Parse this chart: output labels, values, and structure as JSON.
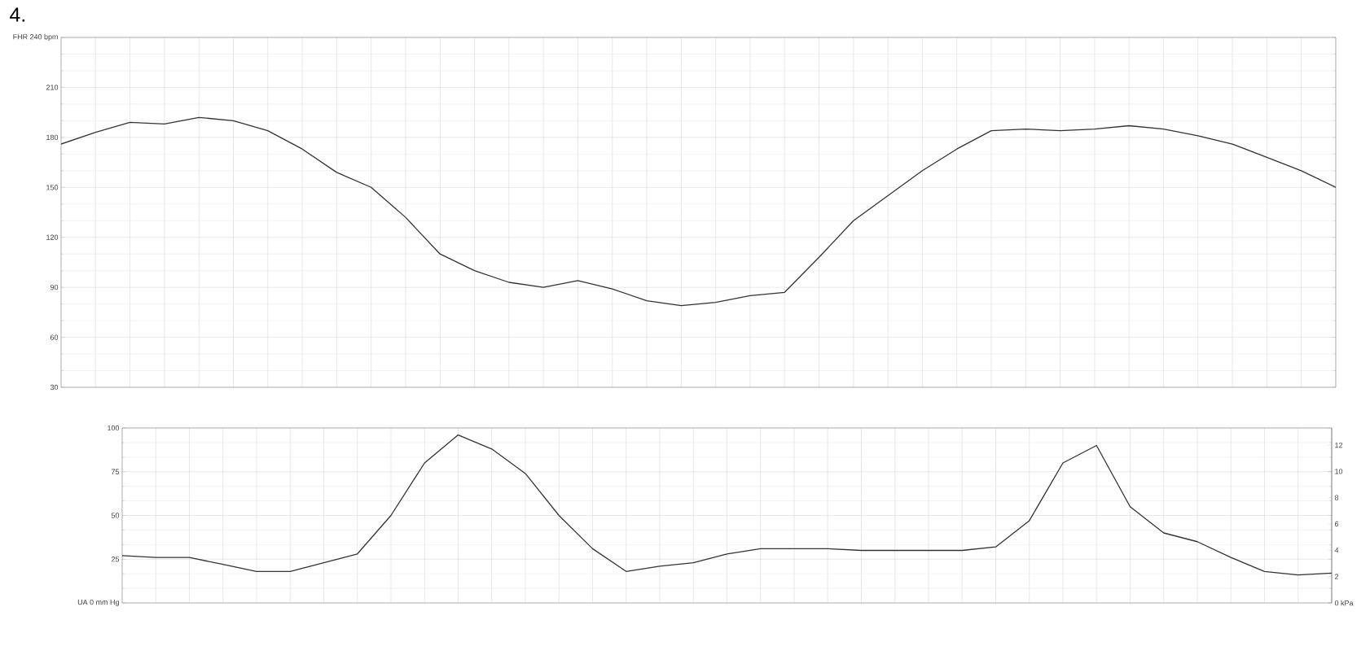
{
  "chart_data": [
    {
      "type": "line",
      "annotations": [
        "4."
      ],
      "color": "#333333",
      "grid": true,
      "categories": [
        null,
        null,
        null,
        null,
        null,
        null,
        null,
        null,
        null,
        null,
        null,
        null,
        null,
        null,
        null,
        null,
        null,
        null,
        null,
        null,
        null,
        null,
        null,
        null,
        null,
        null,
        null,
        null,
        null,
        null,
        null,
        null,
        null,
        null,
        null,
        null,
        null,
        null
      ],
      "values": [
        176,
        183,
        189,
        188,
        192,
        190,
        184,
        173,
        159,
        150,
        132,
        110,
        100,
        93,
        90,
        94,
        89,
        82,
        79,
        81,
        85,
        87,
        108,
        130,
        145,
        160,
        173,
        184,
        185,
        184,
        185,
        187,
        185,
        181,
        176,
        168,
        160,
        150
      ],
      "ylim": [
        30,
        240
      ],
      "yticks": [
        30,
        60,
        90,
        120,
        150,
        180,
        210,
        {
          "value": 240,
          "label": "FHR 240 bpm"
        }
      ]
    },
    {
      "type": "line",
      "color": "#333333",
      "grid": true,
      "categories": [
        null,
        null,
        null,
        null,
        null,
        null,
        null,
        null,
        null,
        null,
        null,
        null,
        null,
        null,
        null,
        null,
        null,
        null,
        null,
        null,
        null,
        null,
        null,
        null,
        null,
        null,
        null,
        null,
        null,
        null,
        null,
        null,
        null,
        null,
        null,
        null,
        null
      ],
      "values": [
        27,
        26,
        26,
        22,
        18,
        18,
        23,
        28,
        50,
        80,
        96,
        88,
        74,
        50,
        31,
        18,
        21,
        23,
        28,
        31,
        31,
        31,
        30,
        30,
        30,
        30,
        32,
        47,
        80,
        90,
        55,
        40,
        35,
        26,
        18,
        16,
        17
      ],
      "ylim": [
        0,
        100
      ],
      "yticks": [
        {
          "value": 0,
          "label": "UA 0 mm Hg"
        },
        25,
        50,
        75,
        100
      ],
      "y2lim": [
        0,
        13.3
      ],
      "y2ticks": [
        {
          "value": 0,
          "label": "0 kPa"
        },
        2,
        4,
        6,
        8,
        10,
        12
      ]
    }
  ]
}
